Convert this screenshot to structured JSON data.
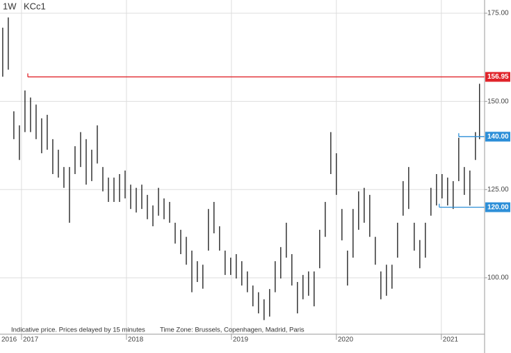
{
  "chart_data": {
    "type": "ohlc",
    "interval": "1W",
    "symbol": "KCc1",
    "note": "Indicative price. Prices delayed by 15 minutes",
    "timezone": "Time Zone: Brussels, Copenhagen, Madrid, Paris",
    "x": [
      2016.821,
      2016.874,
      2016.927,
      2016.98,
      2017.033,
      2017.086,
      2017.139,
      2017.192,
      2017.245,
      2017.298,
      2017.351,
      2017.404,
      2017.457,
      2017.51,
      2017.563,
      2017.616,
      2017.669,
      2017.722,
      2017.775,
      2017.828,
      2017.881,
      2017.934,
      2017.987,
      2018.04,
      2018.093,
      2018.146,
      2018.199,
      2018.252,
      2018.305,
      2018.358,
      2018.411,
      2018.464,
      2018.517,
      2018.57,
      2018.623,
      2018.675,
      2018.728,
      2018.781,
      2018.834,
      2018.887,
      2018.94,
      2018.993,
      2019.046,
      2019.099,
      2019.152,
      2019.205,
      2019.258,
      2019.311,
      2019.364,
      2019.417,
      2019.47,
      2019.523,
      2019.576,
      2019.629,
      2019.682,
      2019.735,
      2019.788,
      2019.841,
      2019.894,
      2019.947,
      2020.0,
      2020.053,
      2020.106,
      2020.159,
      2020.212,
      2020.265,
      2020.318,
      2020.371,
      2020.424,
      2020.477,
      2020.53,
      2020.583,
      2020.636,
      2020.689,
      2020.742,
      2020.795,
      2020.848,
      2020.901,
      2020.954,
      2021.007,
      2021.06,
      2021.113,
      2021.166,
      2021.219,
      2021.272,
      2021.325,
      2021.364
    ],
    "high": [
      170.9,
      173.8,
      147.2,
      143.2,
      153.1,
      151.1,
      149.1,
      145.2,
      146.2,
      139.3,
      136.3,
      131.4,
      131.4,
      137.3,
      141.3,
      139.3,
      136.3,
      143.2,
      131.4,
      128.4,
      128.4,
      129.4,
      130.4,
      126.4,
      125.5,
      126.4,
      123.5,
      120.5,
      125.5,
      122.5,
      121.5,
      115.6,
      113.6,
      111.6,
      107.7,
      104.7,
      103.7,
      119.5,
      121.5,
      114.6,
      107.7,
      105.7,
      106.7,
      104.7,
      101.8,
      97.8,
      95.9,
      93.9,
      96.8,
      104.7,
      108.7,
      115.6,
      106.7,
      98.8,
      100.8,
      101.8,
      101.8,
      113.6,
      121.5,
      141.3,
      135.3,
      119.5,
      107.7,
      119.5,
      124.5,
      125.5,
      123.5,
      111.6,
      101.8,
      103.7,
      103.7,
      115.6,
      127.4,
      131.4,
      115.6,
      110.7,
      115.6,
      125.5,
      129.4,
      129.4,
      128.4,
      127.4,
      139.7,
      131.4,
      130.4,
      141.3,
      155.0
    ],
    "low": [
      157.0,
      159.0,
      139.3,
      133.4,
      141.3,
      141.3,
      139.3,
      135.3,
      136.3,
      129.4,
      128.4,
      125.5,
      115.6,
      129.4,
      131.4,
      126.4,
      127.4,
      132.4,
      124.5,
      121.5,
      121.5,
      121.5,
      122.5,
      119.5,
      118.5,
      119.5,
      116.6,
      114.6,
      117.6,
      116.6,
      115.6,
      109.7,
      106.7,
      103.7,
      95.9,
      98.8,
      96.9,
      107.7,
      112.6,
      107.7,
      100.8,
      100.8,
      99.8,
      97.8,
      95.9,
      91.9,
      89.9,
      88.0,
      89.0,
      95.9,
      99.8,
      105.7,
      97.8,
      89.9,
      93.9,
      94.9,
      91.9,
      102.7,
      111.6,
      129.4,
      123.5,
      110.6,
      97.8,
      105.7,
      113.6,
      115.6,
      111.6,
      103.7,
      93.9,
      94.9,
      96.9,
      105.7,
      117.6,
      119.5,
      107.7,
      102.7,
      105.7,
      117.6,
      120.5,
      122.5,
      120.5,
      119.5,
      127.4,
      123.5,
      120.5,
      133.4,
      139.3
    ],
    "color": "#000000",
    "xlim": [
      2016.795,
      2021.412
    ],
    "xticks": [
      2016,
      2017,
      2018,
      2019,
      2020,
      2021
    ],
    "ylim": [
      84.0,
      178.75
    ],
    "yticks": [
      {
        "value": 100,
        "label": "100.00"
      },
      {
        "value": 125,
        "label": "125.00"
      },
      {
        "value": 150,
        "label": "150.00"
      },
      {
        "value": 175,
        "label": "175.00"
      }
    ],
    "grid": true,
    "levels": [
      {
        "value": 156.95,
        "x_start": 2017.06,
        "color": "#e0242a"
      },
      {
        "value": 140,
        "label": "140.00",
        "x_start": 2021.166,
        "color": "#2d8fd8"
      },
      {
        "value": 120,
        "label": "120.00",
        "x_start": 2020.98,
        "color": "#2d8fd8"
      }
    ]
  }
}
